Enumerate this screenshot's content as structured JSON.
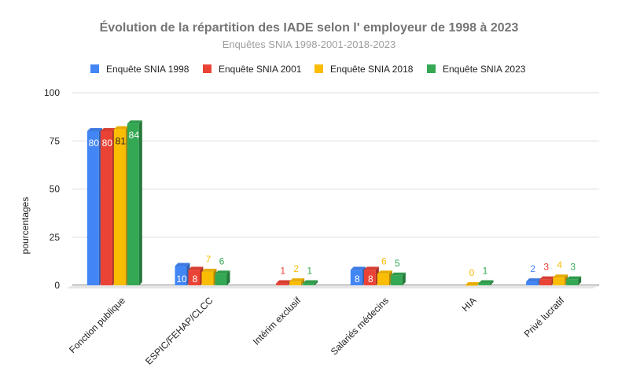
{
  "chart_data": {
    "type": "bar",
    "title": "Évolution de la répartition des IADE selon l' employeur de 1998 à 2023",
    "subtitle": "Enquêtes SNIA 1998-2001-2018-2023",
    "ylabel": "pourcentages",
    "xlabel": "",
    "ylim": [
      0,
      100
    ],
    "yticks": [
      0,
      25,
      50,
      75,
      100
    ],
    "legend_position": "top",
    "grid": true,
    "categories": [
      "Fonction publique",
      "ESPIC/FEHAP/CLCC",
      "Intérim exclusif",
      "Salariés médecins",
      "HIA",
      "Privé lucratif"
    ],
    "series": [
      {
        "name": "Enquête SNIA 1998",
        "color": "#4285f4",
        "values": [
          80,
          10,
          null,
          8,
          null,
          2
        ],
        "labels": [
          "80",
          "10",
          "",
          "8",
          "",
          "2"
        ]
      },
      {
        "name": "Enquête SNIA 2001",
        "color": "#ea4335",
        "values": [
          80,
          8,
          1,
          8,
          null,
          3
        ],
        "labels": [
          "80",
          "8",
          "1",
          "8",
          "",
          "3"
        ]
      },
      {
        "name": "Enquête SNIA 2018",
        "color": "#fbbc04",
        "values": [
          81,
          7,
          2,
          6,
          0,
          4
        ],
        "labels": [
          "81",
          "7",
          "2",
          "6",
          "0",
          "4"
        ]
      },
      {
        "name": "Enquête SNIA 2023",
        "color": "#34a853",
        "values": [
          84,
          6,
          1,
          5,
          1,
          3
        ],
        "labels": [
          "84",
          "6",
          "1",
          "5",
          "1",
          "3"
        ]
      }
    ]
  }
}
